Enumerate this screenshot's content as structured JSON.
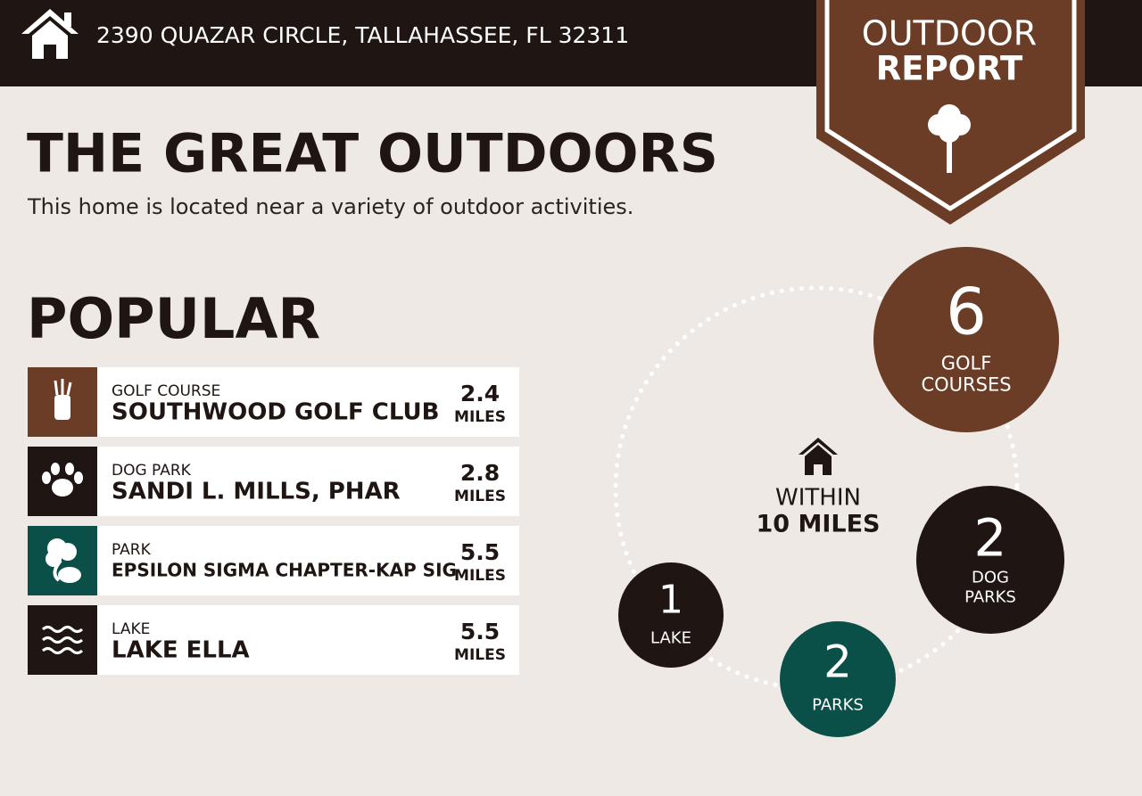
{
  "header": {
    "address": "2390 QUAZAR CIRCLE, TALLAHASSEE, FL 32311"
  },
  "badge": {
    "line1": "OUTDOOR",
    "line2": "REPORT"
  },
  "title": "THE GREAT OUTDOORS",
  "subtitle": "This home is located near a variety of outdoor activities.",
  "popular": {
    "heading": "POPULAR",
    "items": [
      {
        "category": "GOLF COURSE",
        "name": "SOUTHWOOD GOLF CLUB",
        "distance": 2.4,
        "unit": "MILES",
        "color": "#6b3d27"
      },
      {
        "category": "DOG PARK",
        "name": "SANDI L. MILLS, PHAR",
        "distance": 2.8,
        "unit": "MILES",
        "color": "#1f1613"
      },
      {
        "category": "PARK",
        "name": "EPSILON SIGMA CHAPTER-KAP SIG",
        "distance": 5.5,
        "unit": "MILES",
        "color": "#0b4f49"
      },
      {
        "category": "LAKE",
        "name": "LAKE ELLA",
        "distance": 5.5,
        "unit": "MILES",
        "color": "#1f1613"
      }
    ]
  },
  "radius": {
    "line1": "WITHIN",
    "line2": "10 MILES"
  },
  "counts": [
    {
      "count": 6,
      "label": [
        "GOLF",
        "COURSES"
      ],
      "color": "#6b3d27"
    },
    {
      "count": 2,
      "label": [
        "DOG",
        "PARKS"
      ],
      "color": "#1f1613"
    },
    {
      "count": 2,
      "label": [
        "PARKS"
      ],
      "color": "#0b4f49"
    },
    {
      "count": 1,
      "label": [
        "LAKE"
      ],
      "color": "#1f1613"
    }
  ]
}
